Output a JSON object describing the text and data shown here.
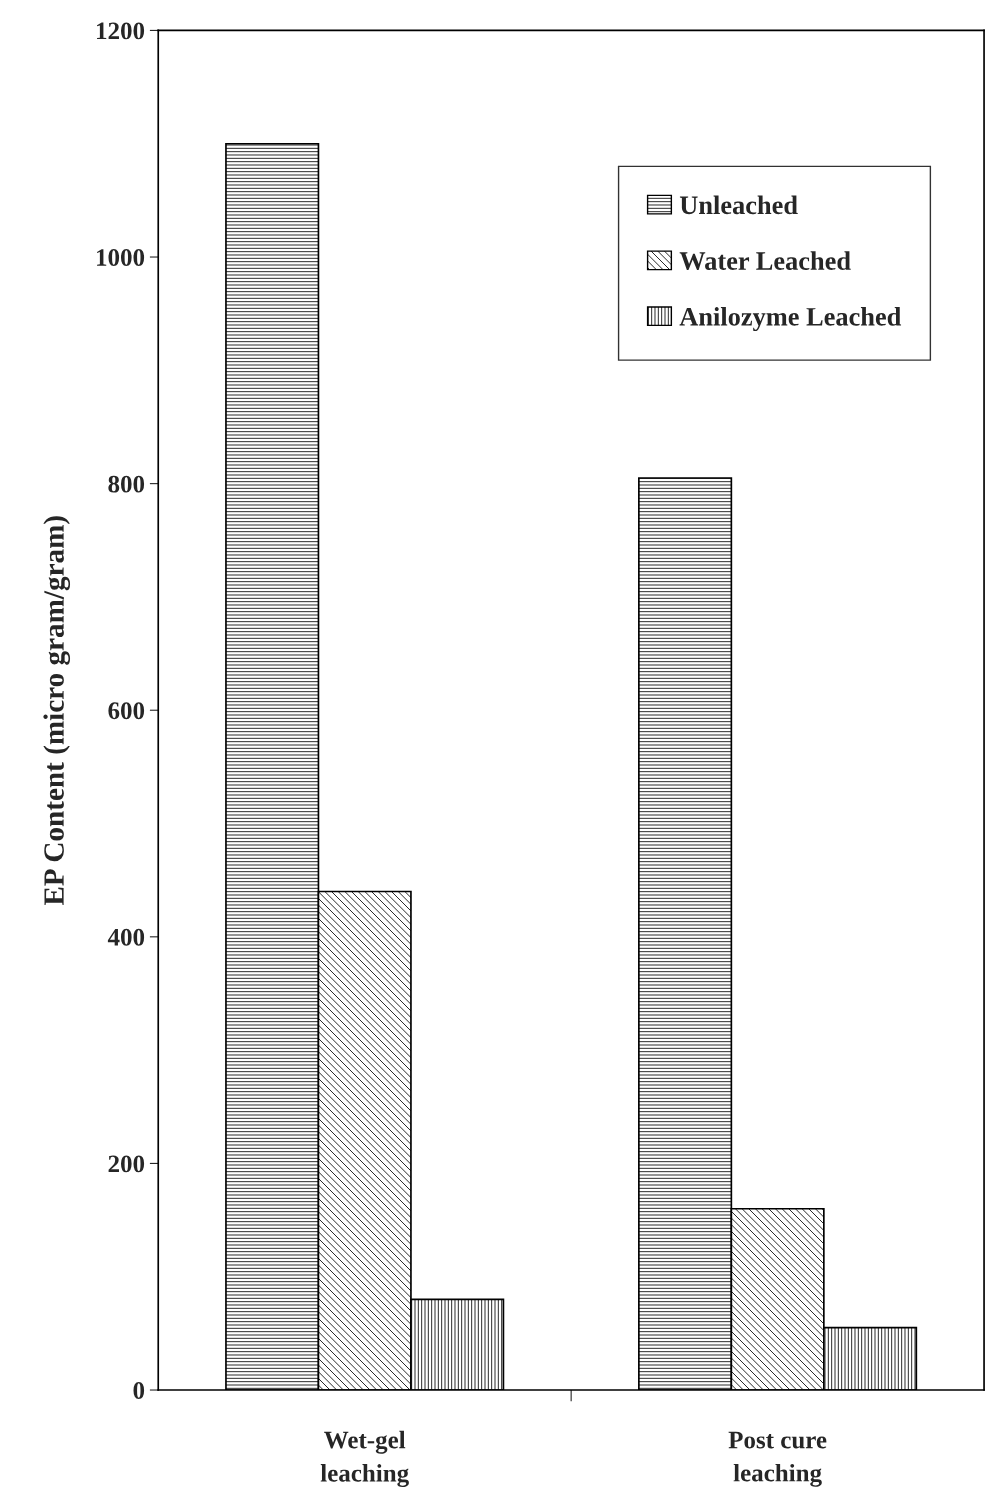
{
  "chart_data": {
    "type": "bar",
    "ylabel": "EP Content (micro gram/gram)",
    "categories": [
      "Wet-gel\nleaching",
      "Post cure\nleaching"
    ],
    "series": [
      {
        "name": "Unleached",
        "color": "#000000",
        "values": [
          1100,
          805
        ]
      },
      {
        "name": "Water Leached",
        "color": "#000000",
        "values": [
          440,
          160
        ]
      },
      {
        "name": "Anilozyme Leached",
        "color": "#000000",
        "values": [
          80,
          55
        ]
      }
    ],
    "ylim": [
      0,
      1200
    ],
    "yticks": [
      0,
      200,
      400,
      600,
      800,
      1000,
      1200
    ],
    "grid": false,
    "legend": "top right"
  }
}
